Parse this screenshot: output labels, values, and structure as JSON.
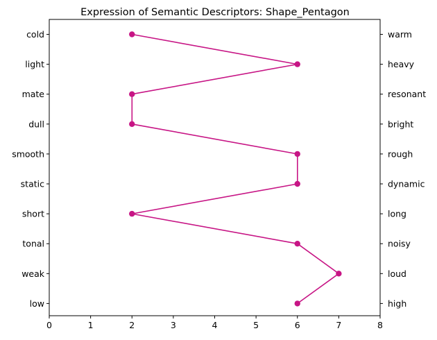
{
  "chart_data": {
    "type": "line",
    "title": "Expression of Semantic Descriptors: Shape_Pentagon",
    "xlabel": "",
    "ylabel": "",
    "xlim": [
      0,
      8
    ],
    "xticks": [
      0,
      1,
      2,
      3,
      4,
      5,
      6,
      7,
      8
    ],
    "left_labels": [
      "cold",
      "light",
      "mate",
      "dull",
      "smooth",
      "static",
      "short",
      "tonal",
      "weak",
      "low"
    ],
    "right_labels": [
      "warm",
      "heavy",
      "resonant",
      "bright",
      "rough",
      "dynamic",
      "long",
      "noisy",
      "loud",
      "high"
    ],
    "values": [
      2,
      6,
      2,
      2,
      6,
      6,
      2,
      6,
      7,
      6
    ],
    "grid": false,
    "color": "#C71585"
  }
}
